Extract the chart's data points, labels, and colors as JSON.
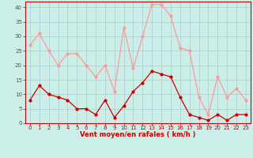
{
  "hours": [
    0,
    1,
    2,
    3,
    4,
    5,
    6,
    7,
    8,
    9,
    10,
    11,
    12,
    13,
    14,
    15,
    16,
    17,
    18,
    19,
    20,
    21,
    22,
    23
  ],
  "wind_avg": [
    8,
    13,
    10,
    9,
    8,
    5,
    5,
    3,
    8,
    2,
    6,
    11,
    14,
    18,
    17,
    16,
    9,
    3,
    2,
    1,
    3,
    1,
    3,
    3
  ],
  "wind_gust": [
    27,
    31,
    25,
    20,
    24,
    24,
    20,
    16,
    20,
    11,
    33,
    19,
    30,
    41,
    41,
    37,
    26,
    25,
    9,
    3,
    16,
    9,
    12,
    8
  ],
  "xlabel": "Vent moyen/en rafales ( km/h )",
  "ylim": [
    0,
    42
  ],
  "yticks": [
    0,
    5,
    10,
    15,
    20,
    25,
    30,
    35,
    40
  ],
  "bg_color": "#cceee8",
  "grid_color": "#aacccc",
  "line_avg_color": "#cc0000",
  "line_gust_color": "#ff9999",
  "marker_size": 2.0,
  "line_width": 0.9,
  "xlabel_fontsize": 6.0,
  "tick_fontsize": 5.0
}
